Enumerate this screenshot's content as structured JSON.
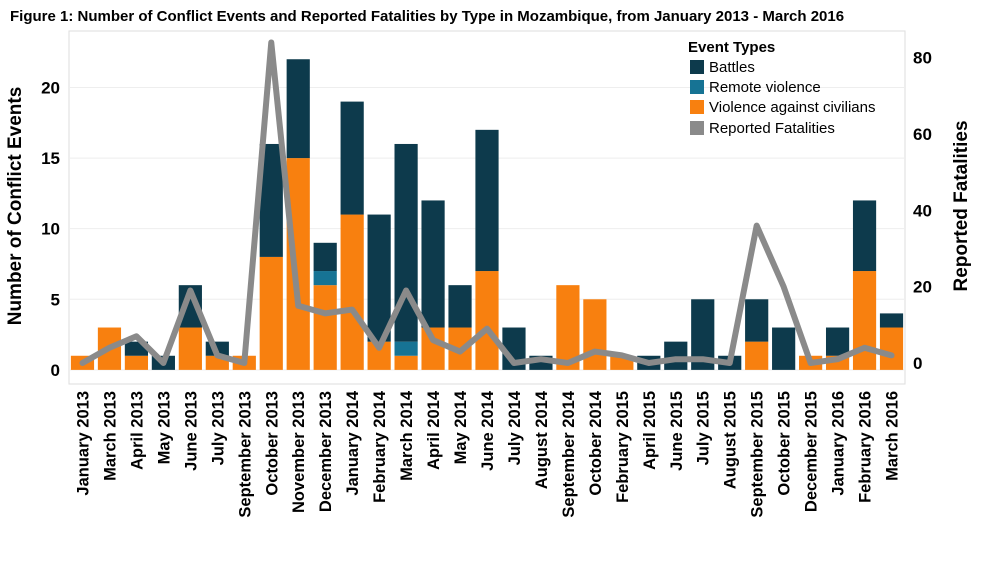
{
  "chart_data": {
    "type": "bar",
    "title": "Figure 1: Number of Conflict Events and Reported Fatalities by Type in Mozambique, from January 2013 - March 2016",
    "ylabel": "Number of Conflict Events",
    "y2label": "Reported Fatalities",
    "ylim": [
      -1,
      24
    ],
    "y2lim": [
      -5.5,
      87
    ],
    "yticks": [
      "0",
      "5",
      "10",
      "15",
      "20"
    ],
    "y2ticks": [
      "0",
      "20",
      "40",
      "60",
      "80"
    ],
    "stacked": true,
    "legend_title": "Event Types",
    "legend_position": "top-right",
    "categories": [
      "January 2013",
      "March 2013",
      "April 2013",
      "May 2013",
      "June 2013",
      "July 2013",
      "September 2013",
      "October 2013",
      "November 2013",
      "December 2013",
      "January 2014",
      "February 2014",
      "March 2014",
      "April 2014",
      "May 2014",
      "June 2014",
      "July 2014",
      "August 2014",
      "September 2014",
      "October 2014",
      "February 2015",
      "April 2015",
      "June 2015",
      "July 2015",
      "August 2015",
      "September 2015",
      "October 2015",
      "December 2015",
      "January 2016",
      "February 2016",
      "March 2016"
    ],
    "series": [
      {
        "name": "Violence against civilians",
        "color": "#f8800f",
        "values": [
          1,
          3,
          1,
          0,
          3,
          1,
          1,
          8,
          15,
          6,
          11,
          2,
          1,
          3,
          3,
          7,
          0,
          0,
          6,
          5,
          1,
          0,
          0,
          0,
          0,
          2,
          0,
          1,
          1,
          7,
          3
        ]
      },
      {
        "name": "Remote violence",
        "color": "#167394",
        "values": [
          0,
          0,
          0,
          0,
          0,
          0,
          0,
          0,
          0,
          1,
          0,
          0,
          1,
          0,
          0,
          0,
          0,
          0,
          0,
          0,
          0,
          0,
          0,
          0,
          0,
          0,
          0,
          0,
          0,
          0,
          0
        ]
      },
      {
        "name": "Battles",
        "color": "#0d3a4c",
        "values": [
          0,
          0,
          1,
          1,
          3,
          1,
          0,
          8,
          7,
          2,
          8,
          9,
          14,
          9,
          3,
          10,
          3,
          1,
          0,
          0,
          0,
          1,
          2,
          5,
          1,
          3,
          3,
          0,
          2,
          5,
          1
        ]
      }
    ],
    "line": {
      "name": "Reported Fatalities",
      "color": "#8a8a8a",
      "axis": "right",
      "values": [
        0,
        4,
        7,
        0,
        19,
        2,
        0,
        84,
        15,
        13,
        14,
        4,
        19,
        6,
        3,
        9,
        0,
        1,
        0,
        3,
        2,
        0,
        1,
        1,
        0,
        36,
        20,
        0,
        1,
        4,
        2
      ]
    }
  }
}
